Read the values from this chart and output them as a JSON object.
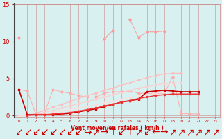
{
  "xlabel": "Vent moyen/en rafales ( km/h )",
  "x": [
    0,
    1,
    2,
    3,
    4,
    5,
    6,
    7,
    8,
    9,
    10,
    11,
    12,
    13,
    14,
    15,
    16,
    17,
    18,
    19,
    20,
    21,
    22,
    23
  ],
  "series": [
    {
      "name": "light_spiky",
      "color": "#ff9999",
      "linewidth": 0.7,
      "marker": "D",
      "markersize": 1.8,
      "y": [
        10.5,
        null,
        null,
        null,
        null,
        null,
        null,
        null,
        null,
        null,
        10.3,
        11.5,
        null,
        13.0,
        10.5,
        11.3,
        11.3,
        11.4,
        null,
        null,
        null,
        null,
        null,
        null
      ]
    },
    {
      "name": "light_zigzag",
      "color": "#ffaaaa",
      "linewidth": 0.7,
      "marker": "D",
      "markersize": 1.8,
      "y": [
        3.5,
        3.3,
        0.2,
        0.3,
        3.5,
        3.2,
        3.0,
        2.7,
        2.5,
        2.5,
        3.0,
        3.2,
        3.2,
        3.3,
        3.0,
        3.0,
        3.0,
        2.9,
        5.2,
        0.3,
        0.2,
        0.2,
        null,
        null
      ]
    },
    {
      "name": "upper_fan",
      "color": "#ffbbbb",
      "linewidth": 0.8,
      "marker": "D",
      "markersize": 1.5,
      "y": [
        0.0,
        0.0,
        0.3,
        0.7,
        1.1,
        1.5,
        1.9,
        2.3,
        2.7,
        3.0,
        3.4,
        3.7,
        4.1,
        4.4,
        4.8,
        5.1,
        5.4,
        5.6,
        5.7,
        5.7,
        null,
        null,
        null,
        null
      ]
    },
    {
      "name": "mid_fan",
      "color": "#ffcccc",
      "linewidth": 0.8,
      "marker": "D",
      "markersize": 1.5,
      "y": [
        0.0,
        0.0,
        0.2,
        0.4,
        0.7,
        1.0,
        1.3,
        1.6,
        1.9,
        2.2,
        2.5,
        2.8,
        3.1,
        3.4,
        3.7,
        3.9,
        4.1,
        4.3,
        4.4,
        4.4,
        null,
        null,
        null,
        null
      ]
    },
    {
      "name": "lower_fan",
      "color": "#ffdddd",
      "linewidth": 0.8,
      "marker": "D",
      "markersize": 1.5,
      "y": [
        0.0,
        0.0,
        0.1,
        0.2,
        0.4,
        0.6,
        0.8,
        1.0,
        1.2,
        1.4,
        1.7,
        1.9,
        2.2,
        2.4,
        2.6,
        2.8,
        3.0,
        3.1,
        3.2,
        3.2,
        null,
        null,
        null,
        null
      ]
    },
    {
      "name": "dark_main",
      "color": "#cc0000",
      "linewidth": 1.2,
      "marker": "s",
      "markersize": 2.0,
      "y": [
        3.5,
        0.1,
        0.1,
        0.1,
        0.1,
        0.2,
        0.3,
        0.5,
        0.7,
        0.9,
        1.2,
        1.5,
        1.8,
        2.0,
        2.2,
        3.2,
        3.3,
        3.4,
        3.3,
        3.2,
        3.2,
        3.2,
        null,
        null
      ]
    },
    {
      "name": "dark_secondary",
      "color": "#ee3333",
      "linewidth": 1.0,
      "marker": "s",
      "markersize": 1.8,
      "y": [
        null,
        0.0,
        0.1,
        0.1,
        0.2,
        0.3,
        0.4,
        0.6,
        0.8,
        1.0,
        1.3,
        1.5,
        1.8,
        2.0,
        2.3,
        2.5,
        2.7,
        2.8,
        2.9,
        2.9,
        2.9,
        2.9,
        null,
        null
      ]
    }
  ],
  "bg_color": "#d8f0f0",
  "grid_color": "#cc8888",
  "text_color": "#cc0000",
  "spine_left_color": "#444444",
  "ylim": [
    -0.3,
    15
  ],
  "yticks": [
    0,
    5,
    10,
    15
  ],
  "xlim": [
    -0.5,
    23.5
  ],
  "arrow_row": [
    "↙",
    "↙",
    "↙",
    "↙",
    "↙",
    "↙",
    "↙",
    "↙",
    "↪",
    "↗",
    "→",
    "↑",
    "↙",
    "↑",
    "↗",
    "↙",
    "←",
    "→",
    "↗",
    "↗",
    "↗",
    "↗",
    "↗",
    "↗"
  ]
}
